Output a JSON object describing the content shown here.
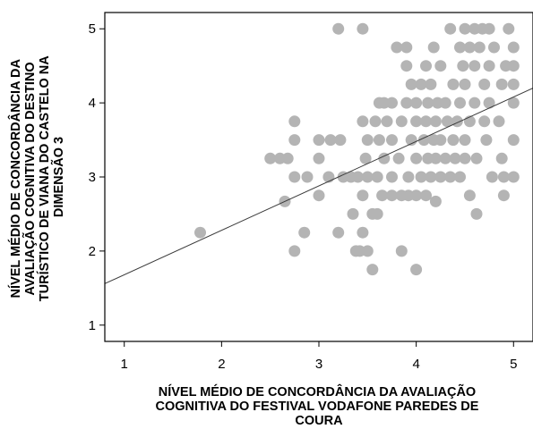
{
  "chart_data": {
    "type": "scatter",
    "xlabel": [
      "NÍVEL MÉDIO DE CONCORDÂNCIA DA AVALIAÇÃO",
      "COGNITIVA DO FESTIVAL VODAFONE PAREDES DE",
      "COURA"
    ],
    "ylabel": [
      "NÍVEL MÉDIO DE CONCORDÂNCIA DA",
      "AVALIAÇÃO COGNITIVA DO DESTINO",
      "TURÍSTICO DE VIANA DO CASTELO NA",
      "DIMENSÃO 3"
    ],
    "xlim": [
      0.8,
      5.2
    ],
    "ylim": [
      0.78,
      5.22
    ],
    "x_ticks": [
      1,
      2,
      3,
      4,
      5
    ],
    "y_ticks": [
      1,
      2,
      3,
      4,
      5
    ],
    "grid": false,
    "point_color": "#b4b4b4",
    "line_color": "#3a3a3a",
    "fit_line": {
      "intercept": 1.08,
      "slope": 0.6
    },
    "points": [
      [
        1.78,
        2.25
      ],
      [
        2.5,
        3.25
      ],
      [
        2.6,
        3.25
      ],
      [
        2.65,
        2.67
      ],
      [
        2.68,
        3.25
      ],
      [
        2.75,
        2.0
      ],
      [
        2.75,
        3.0
      ],
      [
        2.75,
        3.5
      ],
      [
        2.75,
        3.75
      ],
      [
        2.85,
        2.25
      ],
      [
        2.88,
        3.0
      ],
      [
        3.0,
        2.75
      ],
      [
        3.0,
        3.25
      ],
      [
        3.0,
        3.5
      ],
      [
        3.1,
        3.0
      ],
      [
        3.12,
        3.5
      ],
      [
        3.2,
        5.0
      ],
      [
        3.2,
        2.25
      ],
      [
        3.22,
        3.5
      ],
      [
        3.25,
        3.0
      ],
      [
        3.33,
        3.0
      ],
      [
        3.35,
        2.5
      ],
      [
        3.38,
        2.0
      ],
      [
        3.4,
        3.0
      ],
      [
        3.42,
        2.0
      ],
      [
        3.45,
        2.25
      ],
      [
        3.45,
        5.0
      ],
      [
        3.45,
        2.75
      ],
      [
        3.45,
        3.75
      ],
      [
        3.48,
        3.25
      ],
      [
        3.5,
        3.5
      ],
      [
        3.5,
        3.0
      ],
      [
        3.5,
        2.0
      ],
      [
        3.55,
        1.75
      ],
      [
        3.55,
        2.5
      ],
      [
        3.58,
        3.75
      ],
      [
        3.6,
        2.5
      ],
      [
        3.6,
        3.0
      ],
      [
        3.62,
        4.0
      ],
      [
        3.62,
        3.5
      ],
      [
        3.65,
        2.75
      ],
      [
        3.67,
        4.0
      ],
      [
        3.67,
        3.25
      ],
      [
        3.7,
        3.75
      ],
      [
        3.75,
        2.75
      ],
      [
        3.75,
        3.5
      ],
      [
        3.75,
        3.0
      ],
      [
        3.75,
        4.0
      ],
      [
        3.8,
        4.75
      ],
      [
        3.82,
        3.25
      ],
      [
        3.85,
        2.0
      ],
      [
        3.85,
        2.75
      ],
      [
        3.85,
        3.75
      ],
      [
        3.9,
        4.5
      ],
      [
        3.9,
        4.0
      ],
      [
        3.9,
        4.75
      ],
      [
        3.92,
        2.75
      ],
      [
        3.92,
        3.0
      ],
      [
        3.95,
        3.5
      ],
      [
        3.95,
        4.25
      ],
      [
        4.0,
        1.75
      ],
      [
        4.0,
        2.75
      ],
      [
        4.0,
        3.25
      ],
      [
        4.0,
        3.75
      ],
      [
        4.0,
        4.0
      ],
      [
        4.05,
        3.0
      ],
      [
        4.05,
        4.25
      ],
      [
        4.08,
        3.5
      ],
      [
        4.1,
        2.75
      ],
      [
        4.1,
        3.75
      ],
      [
        4.1,
        4.5
      ],
      [
        4.12,
        4.0
      ],
      [
        4.12,
        3.25
      ],
      [
        4.15,
        3.0
      ],
      [
        4.15,
        4.25
      ],
      [
        4.18,
        3.5
      ],
      [
        4.18,
        4.75
      ],
      [
        4.2,
        2.67
      ],
      [
        4.2,
        3.25
      ],
      [
        4.2,
        3.75
      ],
      [
        4.22,
        4.0
      ],
      [
        4.25,
        4.5
      ],
      [
        4.25,
        3.0
      ],
      [
        4.25,
        3.5
      ],
      [
        4.3,
        3.25
      ],
      [
        4.3,
        4.0
      ],
      [
        4.32,
        3.75
      ],
      [
        4.35,
        5.0
      ],
      [
        4.35,
        3.0
      ],
      [
        4.38,
        4.25
      ],
      [
        4.38,
        3.5
      ],
      [
        4.4,
        3.25
      ],
      [
        4.42,
        3.75
      ],
      [
        4.45,
        4.0
      ],
      [
        4.45,
        4.75
      ],
      [
        4.45,
        3.0
      ],
      [
        4.48,
        4.5
      ],
      [
        4.5,
        3.5
      ],
      [
        4.5,
        5.0
      ],
      [
        4.5,
        4.25
      ],
      [
        4.5,
        3.25
      ],
      [
        4.55,
        2.75
      ],
      [
        4.55,
        4.75
      ],
      [
        4.55,
        3.75
      ],
      [
        4.6,
        5.0
      ],
      [
        4.6,
        4.5
      ],
      [
        4.6,
        4.0
      ],
      [
        4.62,
        3.25
      ],
      [
        4.62,
        2.5
      ],
      [
        4.65,
        4.75
      ],
      [
        4.68,
        5.0
      ],
      [
        4.7,
        3.75
      ],
      [
        4.7,
        4.25
      ],
      [
        4.72,
        3.5
      ],
      [
        4.75,
        5.0
      ],
      [
        4.75,
        4.5
      ],
      [
        4.75,
        4.0
      ],
      [
        4.78,
        3.0
      ],
      [
        4.8,
        4.75
      ],
      [
        4.85,
        3.75
      ],
      [
        4.88,
        4.25
      ],
      [
        4.88,
        3.25
      ],
      [
        4.9,
        2.75
      ],
      [
        4.9,
        3.0
      ],
      [
        4.92,
        4.5
      ],
      [
        4.95,
        5.0
      ],
      [
        5.0,
        4.0
      ],
      [
        5.0,
        4.25
      ],
      [
        5.0,
        4.5
      ],
      [
        5.0,
        4.75
      ],
      [
        5.0,
        3.5
      ],
      [
        5.0,
        3.0
      ]
    ]
  }
}
